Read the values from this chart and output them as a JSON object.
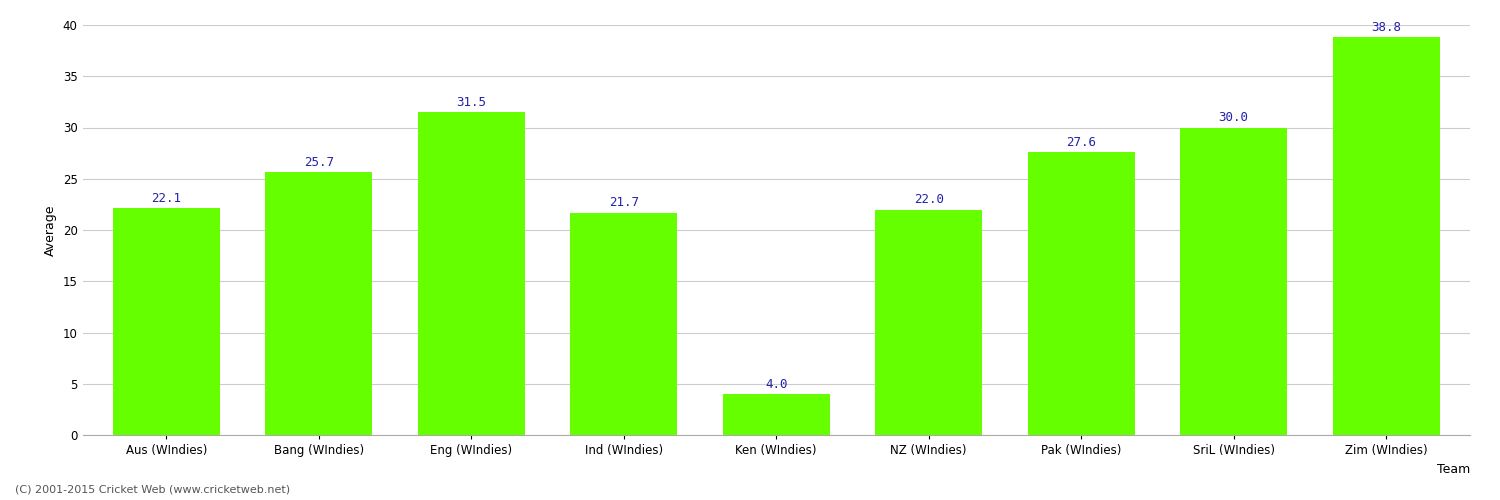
{
  "categories": [
    "Aus (WIndies)",
    "Bang (WIndies)",
    "Eng (WIndies)",
    "Ind (WIndies)",
    "Ken (WIndies)",
    "NZ (WIndies)",
    "Pak (WIndies)",
    "SriL (WIndies)",
    "Zim (WIndies)"
  ],
  "values": [
    22.1,
    25.7,
    31.5,
    21.7,
    4.0,
    22.0,
    27.6,
    30.0,
    38.8
  ],
  "bar_color": "#66FF00",
  "label_color": "#2222AA",
  "ylabel": "Average",
  "xlabel": "Team",
  "ylim": [
    0,
    40
  ],
  "yticks": [
    0,
    5,
    10,
    15,
    20,
    25,
    30,
    35,
    40
  ],
  "grid_color": "#cccccc",
  "background_color": "#ffffff",
  "footer": "(C) 2001-2015 Cricket Web (www.cricketweb.net)",
  "label_fontsize": 9,
  "axis_label_fontsize": 9,
  "tick_fontsize": 8.5
}
